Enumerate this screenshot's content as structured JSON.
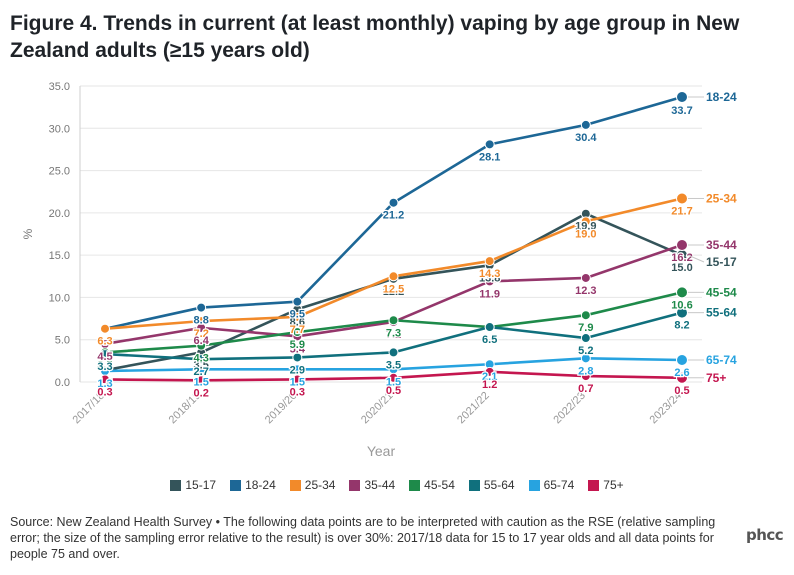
{
  "title": "Figure 4. Trends in current (at least monthly) vaping by age group in New Zealand adults (≥15 years old)",
  "source_note": "Source: New Zealand Health Survey • The following data points are to be interpreted with caution as the RSE (relative sampling error; the size of the sampling error relative to the result) is over 30%: 2017/18 data for 15 to 17 year olds and all data points for people 75 and over.",
  "logo_text": "phcc",
  "chart_data": {
    "type": "line",
    "title": "Figure 4. Trends in current (at least monthly) vaping by age group in New Zealand adults (≥15 years old)",
    "xlabel": "Year",
    "ylabel": "%",
    "ylim": [
      0,
      35
    ],
    "yticks": [
      "0.0",
      "5.0",
      "10.0",
      "15.0",
      "20.0",
      "25.0",
      "30.0",
      "35.0"
    ],
    "categories": [
      "2017/18",
      "2018/19",
      "2019/20",
      "2020/21",
      "2021/22",
      "2022/23",
      "2023/24"
    ],
    "legend_position": "bottom",
    "series": [
      {
        "name": "15-17",
        "color": "#34545a",
        "values": [
          1.4,
          3.5,
          8.6,
          12.2,
          13.8,
          19.9,
          15.0
        ],
        "labels": [
          "1.4",
          "3.5",
          "8.6",
          "12.2",
          "13.8",
          "19.9",
          "15.0"
        ]
      },
      {
        "name": "18-24",
        "color": "#1d6796",
        "values": [
          6.3,
          8.8,
          9.5,
          21.2,
          28.1,
          30.4,
          33.7
        ],
        "labels": [
          "6.3",
          "8.8",
          "9.5",
          "21.2",
          "28.1",
          "30.4",
          "33.7"
        ]
      },
      {
        "name": "25-34",
        "color": "#f28a2a",
        "values": [
          6.3,
          7.2,
          7.7,
          12.5,
          14.3,
          19.0,
          21.7
        ],
        "labels": [
          "6.3",
          "7.2",
          "7.7",
          "12.5",
          "14.3",
          "19.0",
          "21.7"
        ]
      },
      {
        "name": "35-44",
        "color": "#94366b",
        "values": [
          4.5,
          6.4,
          5.4,
          7.1,
          11.9,
          12.3,
          16.2
        ],
        "labels": [
          "4.5",
          "6.4",
          "5.4",
          "7.1",
          "11.9",
          "12.3",
          "16.2"
        ]
      },
      {
        "name": "45-54",
        "color": "#1e8a4a",
        "values": [
          3.5,
          4.3,
          5.9,
          7.3,
          6.5,
          7.9,
          10.6
        ],
        "labels": [
          "3.5",
          "4.3",
          "5.9",
          "7.3",
          "6.5",
          "7.9",
          "10.6"
        ]
      },
      {
        "name": "55-64",
        "color": "#10707d",
        "values": [
          3.3,
          2.7,
          2.9,
          3.5,
          6.5,
          5.2,
          8.2
        ],
        "labels": [
          "3.3",
          "2.7",
          "2.9",
          "3.5",
          "6.5",
          "5.2",
          "8.2"
        ]
      },
      {
        "name": "65-74",
        "color": "#27a3e0",
        "values": [
          1.3,
          1.5,
          1.5,
          1.5,
          2.1,
          2.8,
          2.6
        ],
        "labels": [
          "1.3",
          "1.5",
          "1.5",
          "1.5",
          "2.1",
          "2.8",
          "2.6"
        ]
      },
      {
        "name": "75+",
        "color": "#c4164f",
        "values": [
          0.3,
          0.2,
          0.3,
          0.5,
          1.2,
          0.7,
          0.5
        ],
        "labels": [
          "0.3",
          "0.2",
          "0.3",
          "0.5",
          "1.2",
          "0.7",
          "0.5"
        ]
      }
    ],
    "end_labels": [
      {
        "series": "18-24",
        "text": "18-24"
      },
      {
        "series": "25-34",
        "text": "25-34"
      },
      {
        "series": "35-44",
        "text": "35-44"
      },
      {
        "series": "15-17",
        "text": "15-17"
      },
      {
        "series": "45-54",
        "text": "45-54"
      },
      {
        "series": "55-64",
        "text": "55-64"
      },
      {
        "series": "65-74",
        "text": "65-74"
      },
      {
        "series": "75+",
        "text": "75+"
      }
    ]
  }
}
